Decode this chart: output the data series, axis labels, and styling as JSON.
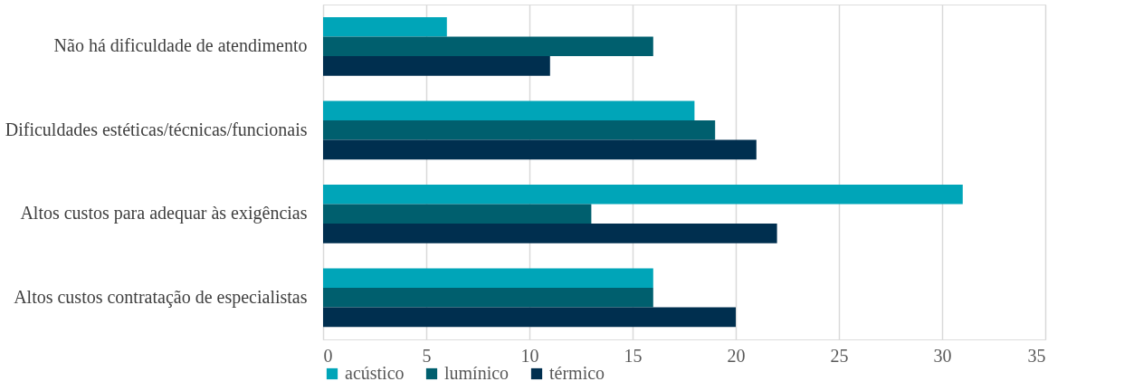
{
  "chart_data": {
    "type": "bar",
    "orientation": "horizontal",
    "categories": [
      "Não há dificuldade de atendimento",
      "Dificuldades estéticas/técnicas/funcionais",
      "Altos custos para adequar às exigências",
      "Altos custos contratação de especialistas"
    ],
    "series": [
      {
        "name": "acústico",
        "color": "#00a5b8",
        "values": [
          6,
          18,
          31,
          16
        ]
      },
      {
        "name": "lumínico",
        "color": "#005f6e",
        "values": [
          16,
          19,
          13,
          16
        ]
      },
      {
        "name": "térmico",
        "color": "#002f4f",
        "values": [
          11,
          21,
          22,
          20
        ]
      }
    ],
    "xlim": [
      0,
      35
    ],
    "xticks": [
      0,
      5,
      10,
      15,
      20,
      25,
      30,
      35
    ],
    "grid": "x",
    "legend": "bottom"
  }
}
